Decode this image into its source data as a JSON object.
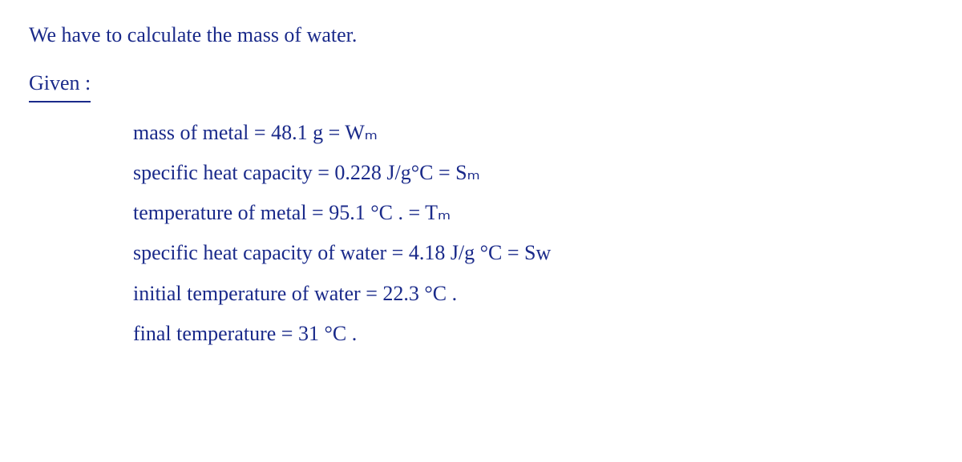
{
  "title_line": "We have to calculate the mass of water.",
  "given_label": "Given :",
  "items": [
    "mass of metal = 48.1 g = Wₘ",
    "specific heat capacity = 0.228 J/g°C = Sₘ",
    "temperature of metal = 95.1 °C . = Tₘ",
    "specific heat capacity of water = 4.18 J/g °C = Sᴡ",
    "initial temperature of water = 22.3 °C .",
    "final temperature = 31 °C ."
  ],
  "text_color": "#1a2a8a",
  "background_color": "#ffffff",
  "font_family": "Comic Sans MS, Segoe Script, cursive",
  "font_size_pt": 20
}
